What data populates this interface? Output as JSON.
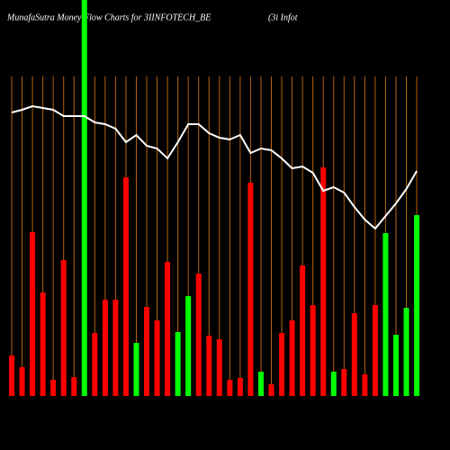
{
  "chart_data": {
    "type": "bar",
    "title": "MunafaSutra  Money Flow  Charts for 3IINFOTECH_BE",
    "subtitle": "(3i  Infot",
    "values": [
      45,
      32,
      182,
      115,
      18,
      151,
      21,
      440,
      70,
      107,
      107,
      243,
      59,
      99,
      84,
      149,
      71,
      111,
      136,
      67,
      63,
      18,
      20,
      237,
      27,
      13,
      70,
      84,
      145,
      101,
      254,
      27,
      30,
      92,
      24,
      101,
      181,
      68,
      98,
      201
    ],
    "colors": [
      "#ff0000",
      "#ff0000",
      "#ff0000",
      "#ff0000",
      "#ff0000",
      "#ff0000",
      "#ff0000",
      "#00ff00",
      "#ff0000",
      "#ff0000",
      "#ff0000",
      "#ff0000",
      "#00ff00",
      "#ff0000",
      "#ff0000",
      "#ff0000",
      "#00ff00",
      "#00ff00",
      "#ff0000",
      "#ff0000",
      "#ff0000",
      "#ff0000",
      "#ff0000",
      "#ff0000",
      "#00ff00",
      "#ff0000",
      "#ff0000",
      "#ff0000",
      "#ff0000",
      "#ff0000",
      "#ff0000",
      "#00ff00",
      "#ff0000",
      "#ff0000",
      "#ff0000",
      "#ff0000",
      "#00ff00",
      "#00ff00",
      "#00ff00",
      "#00ff00"
    ],
    "line": {
      "color": "#ffffff",
      "values": [
        315,
        318,
        322,
        320,
        318,
        311,
        311,
        311,
        304,
        302,
        297,
        282,
        290,
        278,
        275,
        264,
        282,
        302,
        302,
        292,
        287,
        285,
        290,
        270,
        275,
        273,
        264,
        253,
        255,
        248,
        228,
        232,
        226,
        210,
        196,
        186,
        200,
        214,
        230,
        250
      ]
    },
    "ylim": [
      0,
      440
    ]
  }
}
